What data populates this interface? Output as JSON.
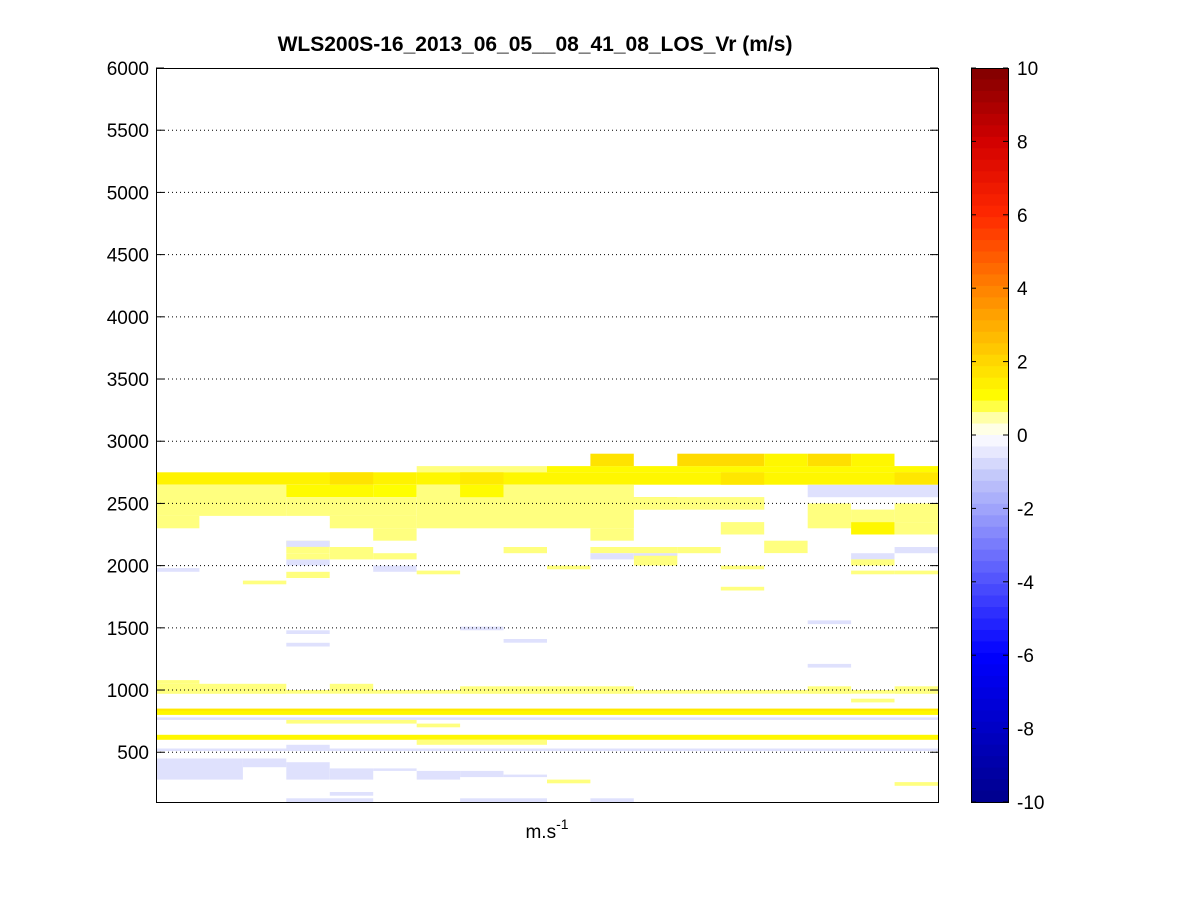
{
  "chart_data": {
    "type": "heatmap",
    "title": "WLS200S-16_2013_06_05__08_41_08_LOS_Vr (m/s)",
    "xlabel": "m.s",
    "xlabel_superscript": "-1",
    "ylabel": "",
    "ylim": [
      100,
      6000
    ],
    "yticks": [
      500,
      1000,
      1500,
      2000,
      2500,
      3000,
      3500,
      4000,
      4500,
      5000,
      5500,
      6000
    ],
    "ytick_labels": [
      "500",
      "1000",
      "1500",
      "2000",
      "2500",
      "3000",
      "3500",
      "4000",
      "4500",
      "5000",
      "5500",
      "6000"
    ],
    "grid": "y-dotted",
    "x_profiles": 18,
    "colorbar": {
      "range": [
        -10,
        10
      ],
      "ticks": [
        -10,
        -8,
        -6,
        -4,
        -2,
        0,
        2,
        4,
        6,
        8,
        10
      ],
      "tick_labels": [
        "-10",
        "-8",
        "-6",
        "-4",
        "-2",
        "0",
        "2",
        "4",
        "6",
        "8",
        "10"
      ],
      "colormap": "blue-white-red"
    },
    "cells": [
      {
        "x0": 0,
        "x1": 6,
        "y0": 2650,
        "y1": 2750,
        "v": 1.3
      },
      {
        "x0": 6,
        "x1": 9,
        "y0": 2750,
        "y1": 2800,
        "v": 0.6
      },
      {
        "x0": 9,
        "x1": 18,
        "y0": 2750,
        "y1": 2800,
        "v": 1.1
      },
      {
        "x0": 6,
        "x1": 18,
        "y0": 2650,
        "y1": 2750,
        "v": 1.2
      },
      {
        "x0": 4,
        "x1": 5,
        "y0": 2650,
        "y1": 2750,
        "v": 1.7
      },
      {
        "x0": 7,
        "x1": 8,
        "y0": 2650,
        "y1": 2750,
        "v": 1.5
      },
      {
        "x0": 13,
        "x1": 14,
        "y0": 2650,
        "y1": 2750,
        "v": 1.6
      },
      {
        "x0": 17,
        "x1": 18,
        "y0": 2650,
        "y1": 2750,
        "v": 1.6
      },
      {
        "x0": 10,
        "x1": 11,
        "y0": 2800,
        "y1": 2900,
        "v": 1.7
      },
      {
        "x0": 12,
        "x1": 14,
        "y0": 2800,
        "y1": 2900,
        "v": 1.9
      },
      {
        "x0": 14,
        "x1": 15,
        "y0": 2800,
        "y1": 2900,
        "v": 1.2
      },
      {
        "x0": 15,
        "x1": 16,
        "y0": 2800,
        "y1": 2900,
        "v": 1.8
      },
      {
        "x0": 16,
        "x1": 17,
        "y0": 2800,
        "y1": 2900,
        "v": 1.2
      },
      {
        "x0": 0,
        "x1": 3,
        "y0": 2400,
        "y1": 2650,
        "v": 0.6
      },
      {
        "x0": 0,
        "x1": 1,
        "y0": 2300,
        "y1": 2400,
        "v": 0.6
      },
      {
        "x0": 3,
        "x1": 5,
        "y0": 2550,
        "y1": 2650,
        "v": 1.1
      },
      {
        "x0": 5,
        "x1": 6,
        "y0": 2550,
        "y1": 2650,
        "v": 1.0
      },
      {
        "x0": 3,
        "x1": 6,
        "y0": 2400,
        "y1": 2550,
        "v": 0.6
      },
      {
        "x0": 4,
        "x1": 6,
        "y0": 2300,
        "y1": 2400,
        "v": 0.6
      },
      {
        "x0": 5,
        "x1": 6,
        "y0": 2200,
        "y1": 2300,
        "v": 0.6
      },
      {
        "x0": 6,
        "x1": 11,
        "y0": 2300,
        "y1": 2650,
        "v": 0.6
      },
      {
        "x0": 7,
        "x1": 8,
        "y0": 2550,
        "y1": 2650,
        "v": 1.1
      },
      {
        "x0": 11,
        "x1": 12,
        "y0": 2450,
        "y1": 2550,
        "v": 1.2
      },
      {
        "x0": 10,
        "x1": 11,
        "y0": 2200,
        "y1": 2300,
        "v": 0.6
      },
      {
        "x0": 11,
        "x1": 14,
        "y0": 2450,
        "y1": 2550,
        "v": 0.6
      },
      {
        "x0": 12,
        "x1": 13,
        "y0": 2450,
        "y1": 2550,
        "v": 0.6
      },
      {
        "x0": 13,
        "x1": 14,
        "y0": 2450,
        "y1": 2550,
        "v": 0.6
      },
      {
        "x0": 13,
        "x1": 14,
        "y0": 2250,
        "y1": 2350,
        "v": 0.6
      },
      {
        "x0": 14,
        "x1": 15,
        "y0": 2100,
        "y1": 2200,
        "v": 0.6
      },
      {
        "x0": 15,
        "x1": 16,
        "y0": 2300,
        "y1": 2500,
        "v": 0.6
      },
      {
        "x0": 16,
        "x1": 17,
        "y0": 2350,
        "y1": 2450,
        "v": 0.6
      },
      {
        "x0": 16,
        "x1": 17,
        "y0": 2250,
        "y1": 2350,
        "v": 1.2
      },
      {
        "x0": 17,
        "x1": 18,
        "y0": 2350,
        "y1": 2500,
        "v": 0.6
      },
      {
        "x0": 17,
        "x1": 18,
        "y0": 2250,
        "y1": 2350,
        "v": 0.6
      },
      {
        "x0": 15,
        "x1": 18,
        "y0": 2550,
        "y1": 2650,
        "v": -0.6
      },
      {
        "x0": 3,
        "x1": 4,
        "y0": 2100,
        "y1": 2200,
        "v": 0.6
      },
      {
        "x0": 3,
        "x1": 4,
        "y0": 2150,
        "y1": 2200,
        "v": -0.6
      },
      {
        "x0": 3,
        "x1": 4,
        "y0": 2000,
        "y1": 2050,
        "v": -0.6
      },
      {
        "x0": 3,
        "x1": 4,
        "y0": 2050,
        "y1": 2100,
        "v": 0.6
      },
      {
        "x0": 4,
        "x1": 5,
        "y0": 2050,
        "y1": 2150,
        "v": 0.6
      },
      {
        "x0": 5,
        "x1": 6,
        "y0": 2050,
        "y1": 2100,
        "v": 0.6
      },
      {
        "x0": 5,
        "x1": 6,
        "y0": 1950,
        "y1": 2000,
        "v": -0.6
      },
      {
        "x0": 3,
        "x1": 4,
        "y0": 1900,
        "y1": 1950,
        "v": 0.6
      },
      {
        "x0": 2,
        "x1": 3,
        "y0": 1850,
        "y1": 1880,
        "v": 0.6
      },
      {
        "x0": 0,
        "x1": 1,
        "y0": 1950,
        "y1": 1980,
        "v": -0.6
      },
      {
        "x0": 6,
        "x1": 7,
        "y0": 1930,
        "y1": 1960,
        "v": 0.6
      },
      {
        "x0": 8,
        "x1": 9,
        "y0": 2100,
        "y1": 2150,
        "v": 0.6
      },
      {
        "x0": 9,
        "x1": 10,
        "y0": 1970,
        "y1": 2000,
        "v": 0.6
      },
      {
        "x0": 10,
        "x1": 12,
        "y0": 2100,
        "y1": 2150,
        "v": 0.6
      },
      {
        "x0": 10,
        "x1": 11,
        "y0": 2050,
        "y1": 2100,
        "v": -0.6
      },
      {
        "x0": 11,
        "x1": 12,
        "y0": 2000,
        "y1": 2100,
        "v": 0.6
      },
      {
        "x0": 11,
        "x1": 12,
        "y0": 2080,
        "y1": 2100,
        "v": -0.6
      },
      {
        "x0": 12,
        "x1": 13,
        "y0": 2100,
        "y1": 2150,
        "v": 0.6
      },
      {
        "x0": 13,
        "x1": 14,
        "y0": 1970,
        "y1": 2000,
        "v": 0.6
      },
      {
        "x0": 13,
        "x1": 14,
        "y0": 1800,
        "y1": 1830,
        "v": 0.6
      },
      {
        "x0": 16,
        "x1": 17,
        "y0": 2050,
        "y1": 2100,
        "v": -0.6
      },
      {
        "x0": 16,
        "x1": 17,
        "y0": 2000,
        "y1": 2050,
        "v": 0.6
      },
      {
        "x0": 16,
        "x1": 17,
        "y0": 1930,
        "y1": 1960,
        "v": 0.6
      },
      {
        "x0": 17,
        "x1": 18,
        "y0": 2100,
        "y1": 2150,
        "v": -0.6
      },
      {
        "x0": 17,
        "x1": 18,
        "y0": 1930,
        "y1": 1960,
        "v": 0.6
      },
      {
        "x0": 3,
        "x1": 4,
        "y0": 1450,
        "y1": 1480,
        "v": -0.6
      },
      {
        "x0": 3,
        "x1": 4,
        "y0": 1350,
        "y1": 1380,
        "v": -0.6
      },
      {
        "x0": 7,
        "x1": 8,
        "y0": 1480,
        "y1": 1510,
        "v": -0.6
      },
      {
        "x0": 8,
        "x1": 9,
        "y0": 1380,
        "y1": 1410,
        "v": -0.6
      },
      {
        "x0": 15,
        "x1": 16,
        "y0": 1530,
        "y1": 1560,
        "v": -0.6
      },
      {
        "x0": 15,
        "x1": 16,
        "y0": 1180,
        "y1": 1210,
        "v": -0.6
      },
      {
        "x0": 0,
        "x1": 1,
        "y0": 1050,
        "y1": 1080,
        "v": 0.6
      },
      {
        "x0": 0,
        "x1": 3,
        "y0": 970,
        "y1": 1050,
        "v": 0.6
      },
      {
        "x0": 3,
        "x1": 7,
        "y0": 970,
        "y1": 1000,
        "v": 0.6
      },
      {
        "x0": 4,
        "x1": 5,
        "y0": 1000,
        "y1": 1050,
        "v": 0.6
      },
      {
        "x0": 7,
        "x1": 11,
        "y0": 970,
        "y1": 1030,
        "v": 0.6
      },
      {
        "x0": 11,
        "x1": 15,
        "y0": 970,
        "y1": 1000,
        "v": 0.6
      },
      {
        "x0": 15,
        "x1": 16,
        "y0": 970,
        "y1": 1030,
        "v": 0.6
      },
      {
        "x0": 16,
        "x1": 17,
        "y0": 970,
        "y1": 1000,
        "v": 0.6
      },
      {
        "x0": 17,
        "x1": 18,
        "y0": 970,
        "y1": 1030,
        "v": 0.6
      },
      {
        "x0": 16,
        "x1": 17,
        "y0": 900,
        "y1": 930,
        "v": 0.6
      },
      {
        "x0": 0,
        "x1": 18,
        "y0": 800,
        "y1": 850,
        "v": 1.2
      },
      {
        "x0": 0,
        "x1": 18,
        "y0": 835,
        "y1": 850,
        "v": 1.6
      },
      {
        "x0": 0,
        "x1": 18,
        "y0": 760,
        "y1": 780,
        "v": -0.6
      },
      {
        "x0": 3,
        "x1": 6,
        "y0": 730,
        "y1": 760,
        "v": 0.6
      },
      {
        "x0": 6,
        "x1": 7,
        "y0": 700,
        "y1": 730,
        "v": 0.6
      },
      {
        "x0": 0,
        "x1": 18,
        "y0": 600,
        "y1": 640,
        "v": 1.2
      },
      {
        "x0": 6,
        "x1": 9,
        "y0": 560,
        "y1": 600,
        "v": 0.6
      },
      {
        "x0": 0,
        "x1": 18,
        "y0": 510,
        "y1": 530,
        "v": -0.6
      },
      {
        "x0": 3,
        "x1": 4,
        "y0": 530,
        "y1": 560,
        "v": -0.6
      },
      {
        "x0": 0,
        "x1": 2,
        "y0": 280,
        "y1": 450,
        "v": -0.6
      },
      {
        "x0": 2,
        "x1": 3,
        "y0": 380,
        "y1": 450,
        "v": -0.6
      },
      {
        "x0": 3,
        "x1": 4,
        "y0": 280,
        "y1": 420,
        "v": -0.6
      },
      {
        "x0": 4,
        "x1": 5,
        "y0": 280,
        "y1": 370,
        "v": -0.6
      },
      {
        "x0": 5,
        "x1": 6,
        "y0": 350,
        "y1": 370,
        "v": -0.6
      },
      {
        "x0": 6,
        "x1": 7,
        "y0": 280,
        "y1": 350,
        "v": -0.6
      },
      {
        "x0": 7,
        "x1": 8,
        "y0": 300,
        "y1": 350,
        "v": -0.6
      },
      {
        "x0": 8,
        "x1": 9,
        "y0": 300,
        "y1": 320,
        "v": -0.6
      },
      {
        "x0": 9,
        "x1": 10,
        "y0": 250,
        "y1": 280,
        "v": 0.6
      },
      {
        "x0": 17,
        "x1": 18,
        "y0": 230,
        "y1": 260,
        "v": 0.6
      },
      {
        "x0": 3,
        "x1": 5,
        "y0": 100,
        "y1": 130,
        "v": -0.6
      },
      {
        "x0": 4,
        "x1": 5,
        "y0": 150,
        "y1": 180,
        "v": -0.6
      },
      {
        "x0": 7,
        "x1": 9,
        "y0": 100,
        "y1": 130,
        "v": -0.6
      },
      {
        "x0": 10,
        "x1": 11,
        "y0": 100,
        "y1": 130,
        "v": -0.6
      }
    ]
  }
}
